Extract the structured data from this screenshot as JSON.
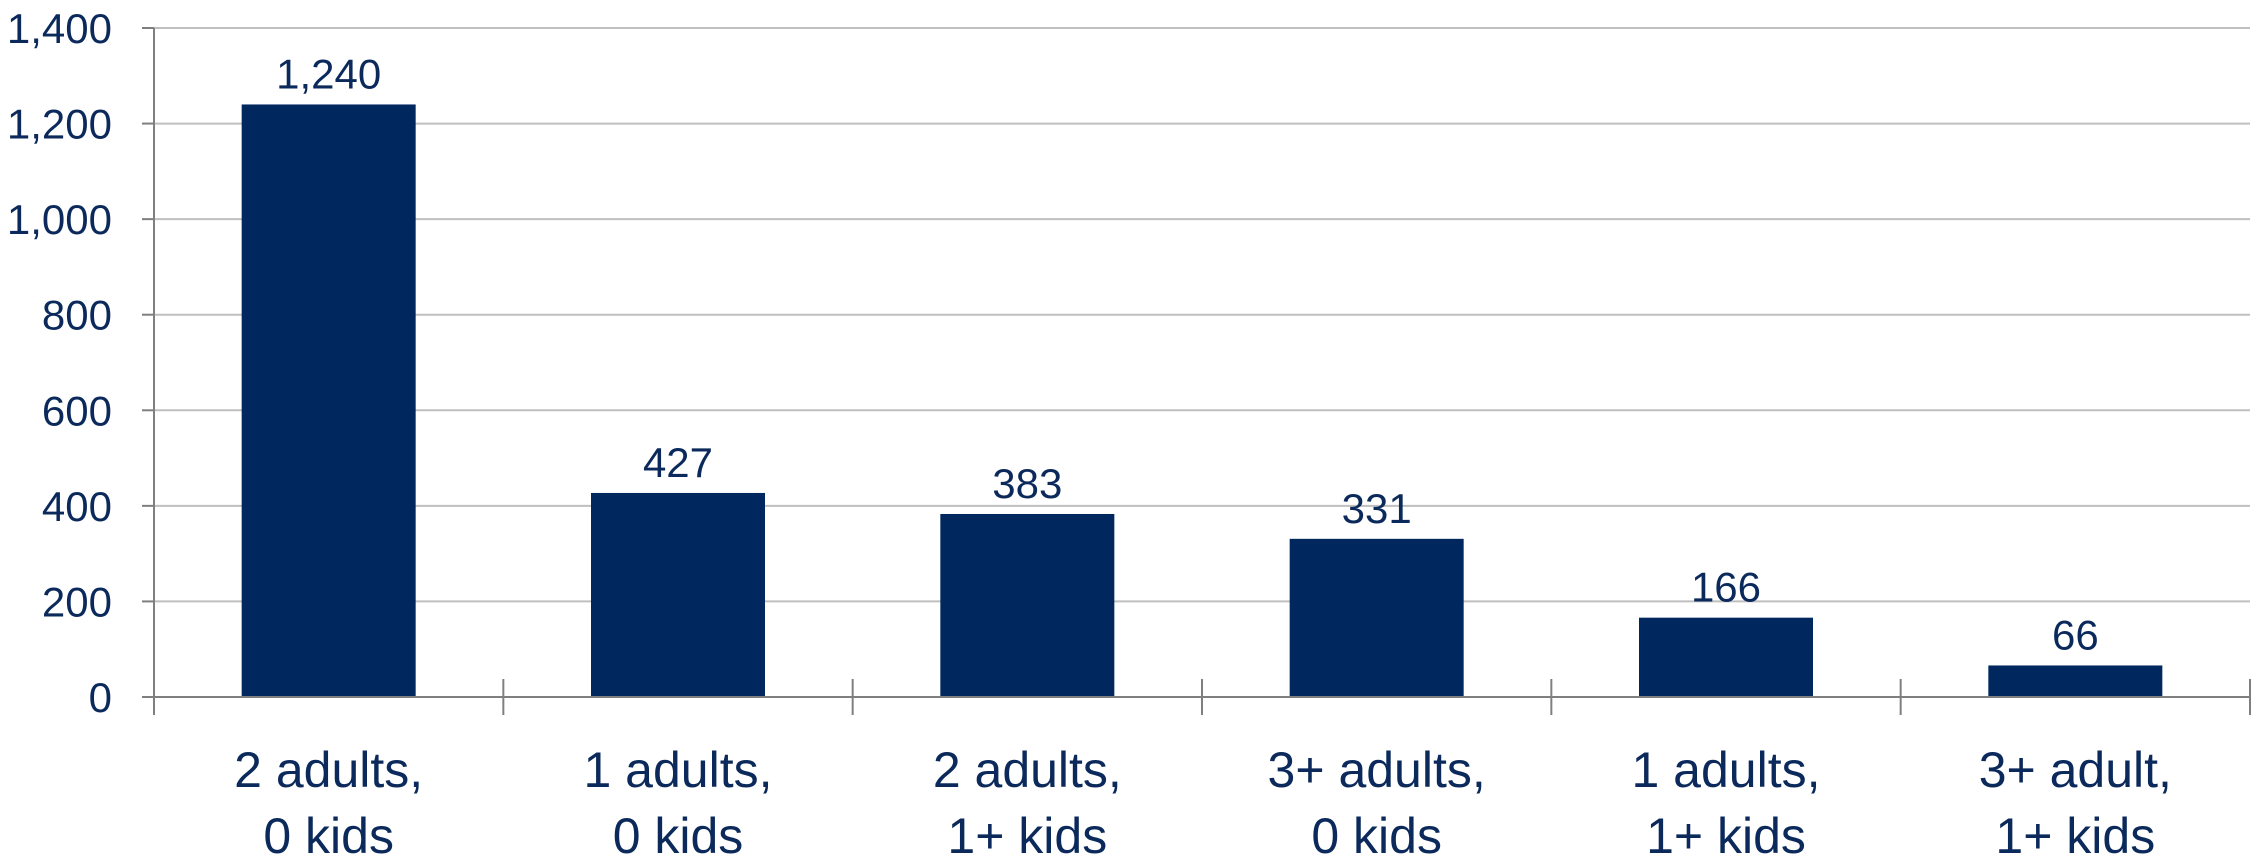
{
  "chart_data": {
    "type": "bar",
    "title": "",
    "xlabel": "",
    "ylabel": "",
    "categories": [
      [
        "2 adults,",
        "0 kids"
      ],
      [
        "1 adults,",
        "0 kids"
      ],
      [
        "2 adults,",
        "1+ kids"
      ],
      [
        "3+ adults,",
        "0 kids"
      ],
      [
        "1 adults,",
        "1+ kids"
      ],
      [
        "3+ adult,",
        "1+ kids"
      ]
    ],
    "values": [
      1240,
      427,
      383,
      331,
      166,
      66
    ],
    "value_labels": [
      "1,240",
      "427",
      "383",
      "331",
      "166",
      "66"
    ],
    "ylim": [
      0,
      1400
    ],
    "yticks": [
      0,
      200,
      400,
      600,
      800,
      1000,
      1200,
      1400
    ],
    "ytick_labels": [
      "0",
      "200",
      "400",
      "600",
      "800",
      "1,000",
      "1,200",
      "1,400"
    ],
    "grid": true,
    "legend": "none",
    "colors": {
      "bar": "#00285e",
      "text": "#0b2a5b",
      "grid": "#bfbfbf",
      "axis": "#7f7f7f"
    }
  }
}
